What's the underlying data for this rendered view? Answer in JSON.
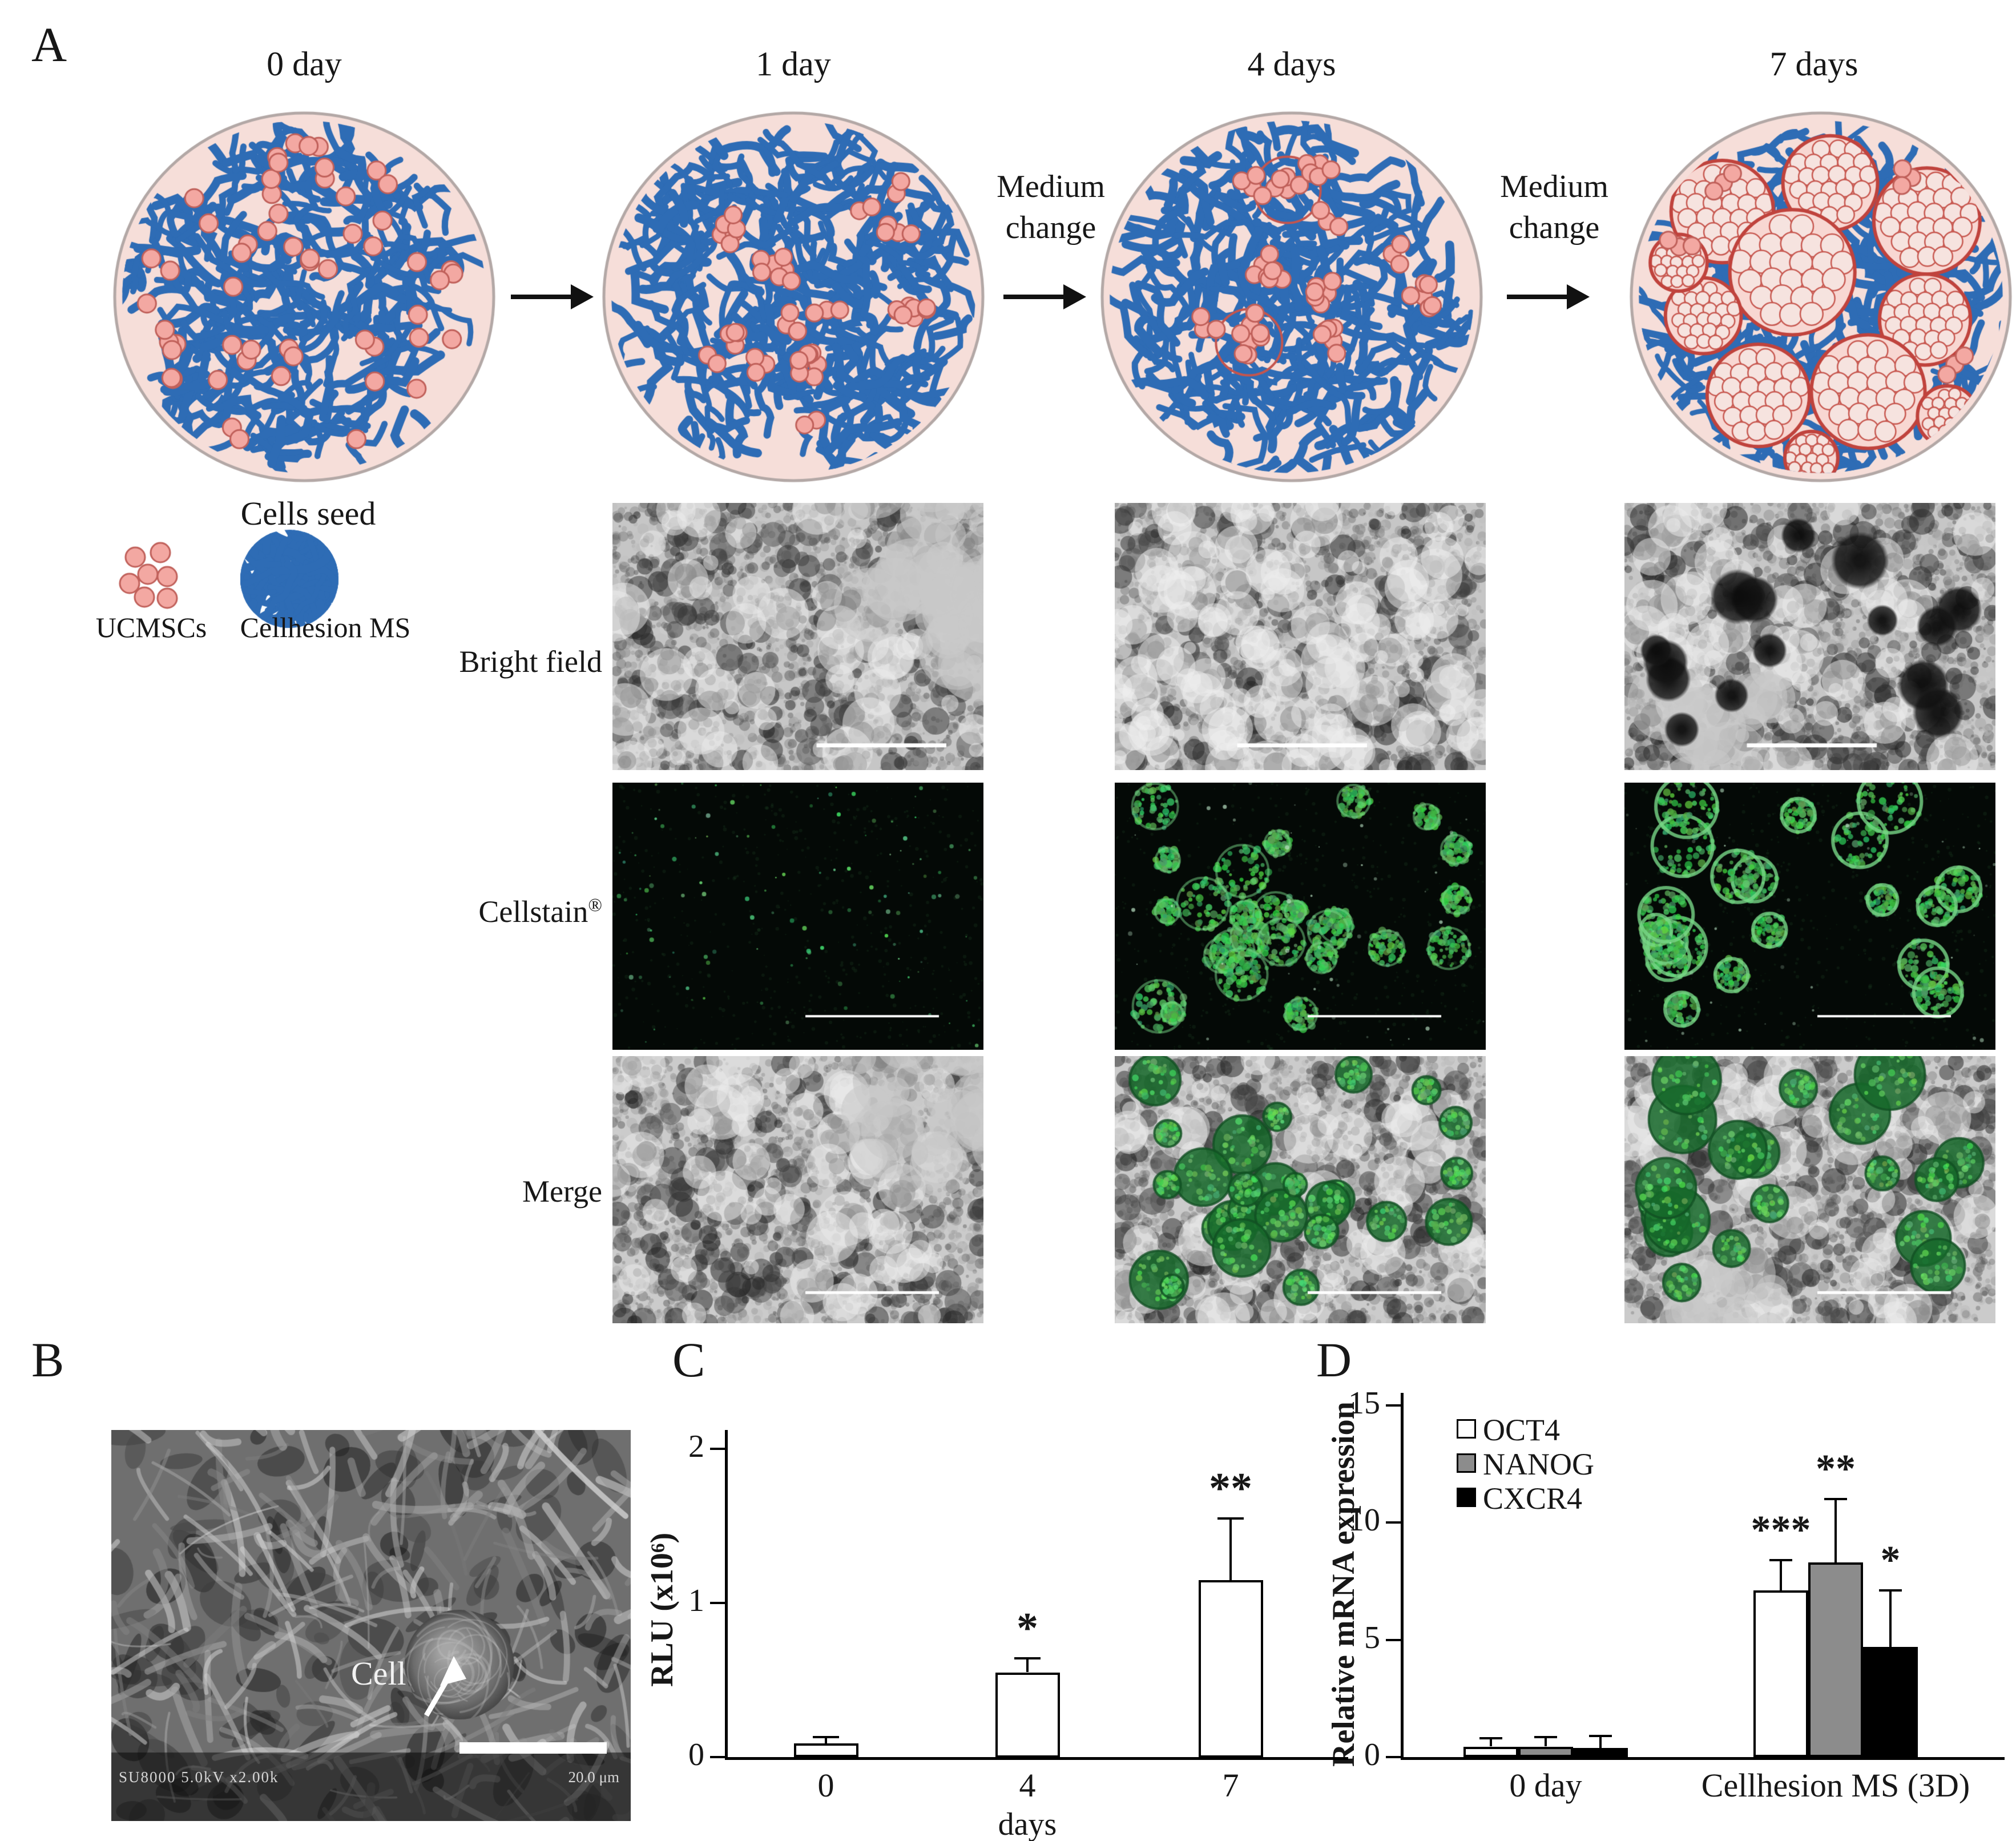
{
  "figure": {
    "panel_a_label": "A",
    "panel_b_label": "B",
    "panel_c_label": "C",
    "panel_d_label": "D"
  },
  "schematic": {
    "timepoints": [
      {
        "label": "0 day"
      },
      {
        "label": "1 day"
      },
      {
        "label": "4 days"
      },
      {
        "label": "7 days"
      }
    ],
    "medium_change_1": "Medium change",
    "medium_change_2": "Medium change",
    "cells_seed_label": "Cells seed",
    "legend": [
      {
        "label": "UCMSCs"
      },
      {
        "label": "Cellhesion MS"
      }
    ],
    "colors": {
      "dish_fill": "#f6ded9",
      "dish_border": "#b3a8a6",
      "fiber_blue": "#2e6cb5",
      "cell_fill": "#f3a8a2",
      "cell_border": "#c0605a",
      "spheroid_border": "#c0433d"
    }
  },
  "microscopy": {
    "rows": [
      {
        "label": "Bright field",
        "sup": ""
      },
      {
        "label": "Cellstain",
        "sup": "®"
      },
      {
        "label": "Merge",
        "sup": ""
      }
    ],
    "columns": [
      "1 day",
      "4 days",
      "7 days"
    ]
  },
  "sem": {
    "annotation": "Cell",
    "meta_text": "SU8000 5.0kV x2.00k",
    "scale_text": "20.0 μm"
  },
  "chart_data": [
    {
      "id": "rlu_chart",
      "type": "bar",
      "title": "",
      "xlabel": "days",
      "ylabel": "RLU (x10⁶)",
      "categories": [
        "0",
        "4",
        "7"
      ],
      "values": [
        0.09,
        0.55,
        1.15
      ],
      "errors": [
        0.04,
        0.09,
        0.4
      ],
      "significance": [
        "",
        "*",
        "**"
      ],
      "ylim": [
        0,
        2
      ],
      "yticks": [
        0,
        1,
        2
      ],
      "bar_fill": "#ffffff",
      "bar_border": "#000000",
      "grid": false
    },
    {
      "id": "mrna_chart",
      "type": "bar",
      "title": "",
      "xlabel": "",
      "ylabel": "Relative mRNA expression",
      "categories": [
        "0 day",
        "Cellhesion MS (3D)"
      ],
      "series": [
        {
          "name": "OCT4",
          "fill": "#ffffff",
          "values": [
            0.45,
            7.1
          ],
          "errors": [
            0.35,
            1.3
          ],
          "significance": [
            "",
            "***"
          ]
        },
        {
          "name": "NANOG",
          "fill": "#8c8c8c",
          "values": [
            0.45,
            8.3
          ],
          "errors": [
            0.4,
            2.7
          ],
          "significance": [
            "",
            "**"
          ]
        },
        {
          "name": "CXCR4",
          "fill": "#000000",
          "values": [
            0.4,
            4.7
          ],
          "errors": [
            0.5,
            2.4
          ],
          "significance": [
            "",
            "*"
          ]
        }
      ],
      "ylim": [
        0,
        15
      ],
      "yticks": [
        0,
        5,
        10,
        15
      ],
      "legend_position": "top-left",
      "grid": false
    }
  ]
}
